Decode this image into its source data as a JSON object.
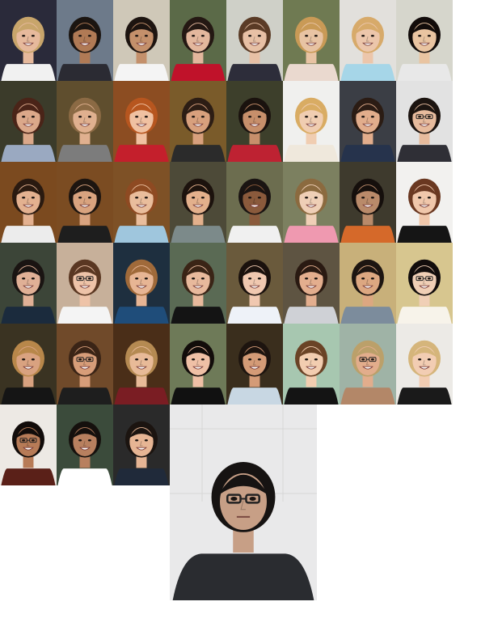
{
  "gallery": {
    "rows": [
      {
        "tiles": [
          {
            "bg": "#2a2a3a",
            "skin": "#e6b99c",
            "hair": "#c8a56b",
            "shirt": "#f1f1f1",
            "glasses": false
          },
          {
            "bg": "#6d7a8a",
            "skin": "#b07a55",
            "hair": "#1b1511",
            "shirt": "#2b2b33",
            "glasses": false
          },
          {
            "bg": "#cfc8b8",
            "skin": "#c4906b",
            "hair": "#1d1410",
            "shirt": "#f4f4f4",
            "glasses": false
          },
          {
            "bg": "#5b6a48",
            "skin": "#e3b79d",
            "hair": "#241813",
            "shirt": "#c0122a",
            "glasses": false
          },
          {
            "bg": "#cfd0c8",
            "skin": "#e7c0a5",
            "hair": "#5a3b26",
            "shirt": "#2d2d3a",
            "glasses": false
          },
          {
            "bg": "#6f7a52",
            "skin": "#e8c3a3",
            "hair": "#c99a56",
            "shirt": "#ead9cf",
            "glasses": false
          },
          {
            "bg": "#e2e0dc",
            "skin": "#ecc6ab",
            "hair": "#d7aa6a",
            "shirt": "#a6d6e8",
            "glasses": false
          },
          {
            "bg": "#d6d6cc",
            "skin": "#e9c4a1",
            "hair": "#120c0a",
            "shirt": "#e8e8e8",
            "glasses": false
          }
        ]
      },
      {
        "tiles": [
          {
            "bg": "#3b3b2a",
            "skin": "#dba88a",
            "hair": "#4a2418",
            "shirt": "#9aa9c1",
            "glasses": false
          },
          {
            "bg": "#5f4e2e",
            "skin": "#e0b08f",
            "hair": "#8b6a44",
            "shirt": "#7c7c7c",
            "glasses": false
          },
          {
            "bg": "#8c4d22",
            "skin": "#f0c1a1",
            "hair": "#b7561f",
            "shirt": "#c41f2c",
            "glasses": false
          },
          {
            "bg": "#7a5b2a",
            "skin": "#d8a07d",
            "hair": "#2c1d14",
            "shirt": "#2b2b2b",
            "glasses": false
          },
          {
            "bg": "#3d3f2b",
            "skin": "#c78f6b",
            "hair": "#1a120e",
            "shirt": "#be2232",
            "glasses": false
          },
          {
            "bg": "#f0f0ee",
            "skin": "#f0cdb1",
            "hair": "#d9ac63",
            "shirt": "#efe8dc",
            "glasses": false
          },
          {
            "bg": "#3b3e45",
            "skin": "#e2ad8c",
            "hair": "#2b1c14",
            "shirt": "#26334c",
            "glasses": false
          },
          {
            "bg": "#e2e2e2",
            "skin": "#e7bb9d",
            "hair": "#1c1410",
            "shirt": "#2f2f36",
            "glasses": true
          }
        ]
      },
      {
        "tiles": [
          {
            "bg": "#7b4a1f",
            "skin": "#e3b190",
            "hair": "#2a1a10",
            "shirt": "#ececec",
            "glasses": false
          },
          {
            "bg": "#7b4c22",
            "skin": "#d9a37f",
            "hair": "#1d1510",
            "shirt": "#1e1e1e",
            "glasses": false
          },
          {
            "bg": "#7e5126",
            "skin": "#e9bd9c",
            "hair": "#8e4a22",
            "shirt": "#9fc6dd",
            "glasses": false
          },
          {
            "bg": "#4d4a38",
            "skin": "#e3b08c",
            "hair": "#1c120d",
            "shirt": "#7c8a8a",
            "glasses": false
          },
          {
            "bg": "#6c6d4f",
            "skin": "#8a5a3c",
            "hair": "#1a1412",
            "shirt": "#f0f0f0",
            "glasses": false
          },
          {
            "bg": "#7c8060",
            "skin": "#efcfb6",
            "hair": "#8b6a3f",
            "shirt": "#ef99b0",
            "glasses": false
          },
          {
            "bg": "#3e3a2d",
            "skin": "#b98a6a",
            "hair": "#150f0c",
            "shirt": "#d5692a",
            "glasses": false
          },
          {
            "bg": "#f2f1ef",
            "skin": "#f0c7ab",
            "hair": "#6a3821",
            "shirt": "#151515",
            "glasses": false
          }
        ]
      },
      {
        "tiles": [
          {
            "bg": "#3c4538",
            "skin": "#e0b096",
            "hair": "#1a1412",
            "shirt": "#1b2b3d",
            "glasses": false
          },
          {
            "bg": "#c7b09a",
            "skin": "#eec3a8",
            "hair": "#5a3722",
            "shirt": "#f4f4f4",
            "glasses": true
          },
          {
            "bg": "#1e2f3f",
            "skin": "#e7b594",
            "hair": "#a06a3a",
            "shirt": "#1f4d7a",
            "glasses": false
          },
          {
            "bg": "#5a6a54",
            "skin": "#e8b99c",
            "hair": "#3a2416",
            "shirt": "#141414",
            "glasses": false
          },
          {
            "bg": "#6a5a3c",
            "skin": "#f0c8b0",
            "hair": "#1a110d",
            "shirt": "#eef2f8",
            "glasses": false
          },
          {
            "bg": "#5e5442",
            "skin": "#e3ae8e",
            "hair": "#2a1a12",
            "shirt": "#cfd1d6",
            "glasses": false
          },
          {
            "bg": "#c8b07a",
            "skin": "#dca781",
            "hair": "#1d1511",
            "shirt": "#7c8c9c",
            "glasses": false
          },
          {
            "bg": "#d7c68f",
            "skin": "#f0cfb6",
            "hair": "#120d0c",
            "shirt": "#f7f3ea",
            "glasses": true
          }
        ]
      },
      {
        "tiles": [
          {
            "bg": "#3a3322",
            "skin": "#d9a280",
            "hair": "#b8874a",
            "shirt": "#151515",
            "glasses": false
          },
          {
            "bg": "#704a2a",
            "skin": "#d79d79",
            "hair": "#3a2416",
            "shirt": "#1e1e1e",
            "glasses": true
          },
          {
            "bg": "#4a2e18",
            "skin": "#e8ba98",
            "hair": "#b58a52",
            "shirt": "#7a1d23",
            "glasses": false
          },
          {
            "bg": "#6e7a58",
            "skin": "#efc0a6",
            "hair": "#120c0a",
            "shirt": "#111111",
            "glasses": false
          },
          {
            "bg": "#3a2e1d",
            "skin": "#d49b77",
            "hair": "#1d140f",
            "shirt": "#c8d7e3",
            "glasses": false
          },
          {
            "bg": "#a7c7b0",
            "skin": "#f2cdb0",
            "hair": "#6a4326",
            "shirt": "#141414",
            "glasses": false
          },
          {
            "bg": "#9fb3a6",
            "skin": "#e2ad8c",
            "hair": "#bba06a",
            "shirt": "#b38768",
            "glasses": true
          },
          {
            "bg": "#eceae6",
            "skin": "#f2cdb3",
            "hair": "#d5b57b",
            "shirt": "#1a1a1a",
            "glasses": false
          }
        ]
      },
      {
        "tiles": [
          {
            "bg": "#ede9e4",
            "skin": "#b77b57",
            "hair": "#120c0a",
            "shirt": "#5a2018",
            "glasses": true
          },
          {
            "bg": "#3b4b3b",
            "skin": "#b8805f",
            "hair": "#15100d",
            "shirt": "#ffffff",
            "glasses": false
          },
          {
            "bg": "#2a2a2a",
            "skin": "#e6b594",
            "hair": "#1b1410",
            "shirt": "#202a3a",
            "glasses": false
          }
        ]
      }
    ],
    "featured": {
      "bg": "#e9e9ea",
      "skin": "#c79f86",
      "hair": "#161312",
      "shirt": "#2a2c30",
      "glasses": true
    }
  }
}
